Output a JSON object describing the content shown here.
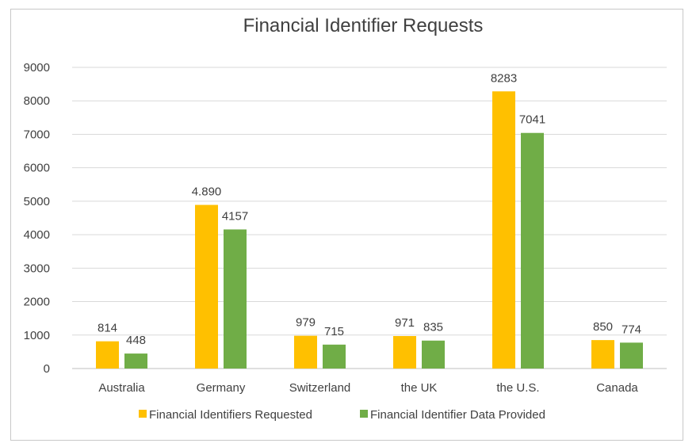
{
  "chart_data": {
    "type": "bar",
    "title": "Financial Identifier Requests",
    "xlabel": "",
    "ylabel": "",
    "categories": [
      "Australia",
      "Germany",
      "Switzerland",
      "the UK",
      "the U.S.",
      "Canada"
    ],
    "series": [
      {
        "name": "Financial Identifiers Requested",
        "color": "#FFC000",
        "values": [
          814,
          4890,
          979,
          971,
          8283,
          850
        ],
        "labels": [
          "814",
          "4.890",
          "979",
          "971",
          "8283",
          "850"
        ]
      },
      {
        "name": "Financial Identifier Data Provided",
        "color": "#70AD47",
        "values": [
          448,
          4157,
          715,
          835,
          7041,
          774
        ],
        "labels": [
          "448",
          "4157",
          "715",
          "835",
          "7041",
          "774"
        ]
      }
    ],
    "ylim": [
      0,
      9000
    ],
    "yticks": [
      "0",
      "1000",
      "2000",
      "3000",
      "4000",
      "5000",
      "6000",
      "7000",
      "8000",
      "9000"
    ],
    "grid": true,
    "legend_position": "bottom"
  }
}
